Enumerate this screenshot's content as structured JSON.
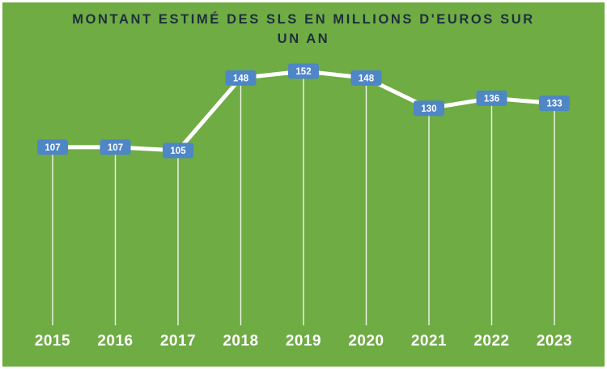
{
  "title": {
    "line1": "MONTANT ESTIMÉ DES SLS EN MILLIONS D'EUROS SUR",
    "line2": "UN AN"
  },
  "colors": {
    "background": "#6FAC44",
    "title_text": "#1F2F3C",
    "line": "#FFFFFF",
    "drop_line": "#FFFFFF",
    "label_box": "#4E86C6",
    "label_text": "#FFFFFF",
    "axis_label": "#FFFFFF"
  },
  "chart_data": {
    "type": "line",
    "title": "Montant estimé des SLS en millions d'euros sur un an",
    "categories": [
      "2015",
      "2016",
      "2017",
      "2018",
      "2019",
      "2020",
      "2021",
      "2022",
      "2023"
    ],
    "values": [
      107,
      107,
      105,
      148,
      152,
      148,
      130,
      136,
      133
    ],
    "series": [
      {
        "name": "Montant estimé des SLS (millions d'euros)",
        "values": [
          107,
          107,
          105,
          148,
          152,
          148,
          130,
          136,
          133
        ]
      }
    ],
    "xlabel": "",
    "ylabel": "",
    "ylim": [
      100,
      160
    ],
    "grid": false,
    "legend_position": "none",
    "data_labels_visible": true
  }
}
